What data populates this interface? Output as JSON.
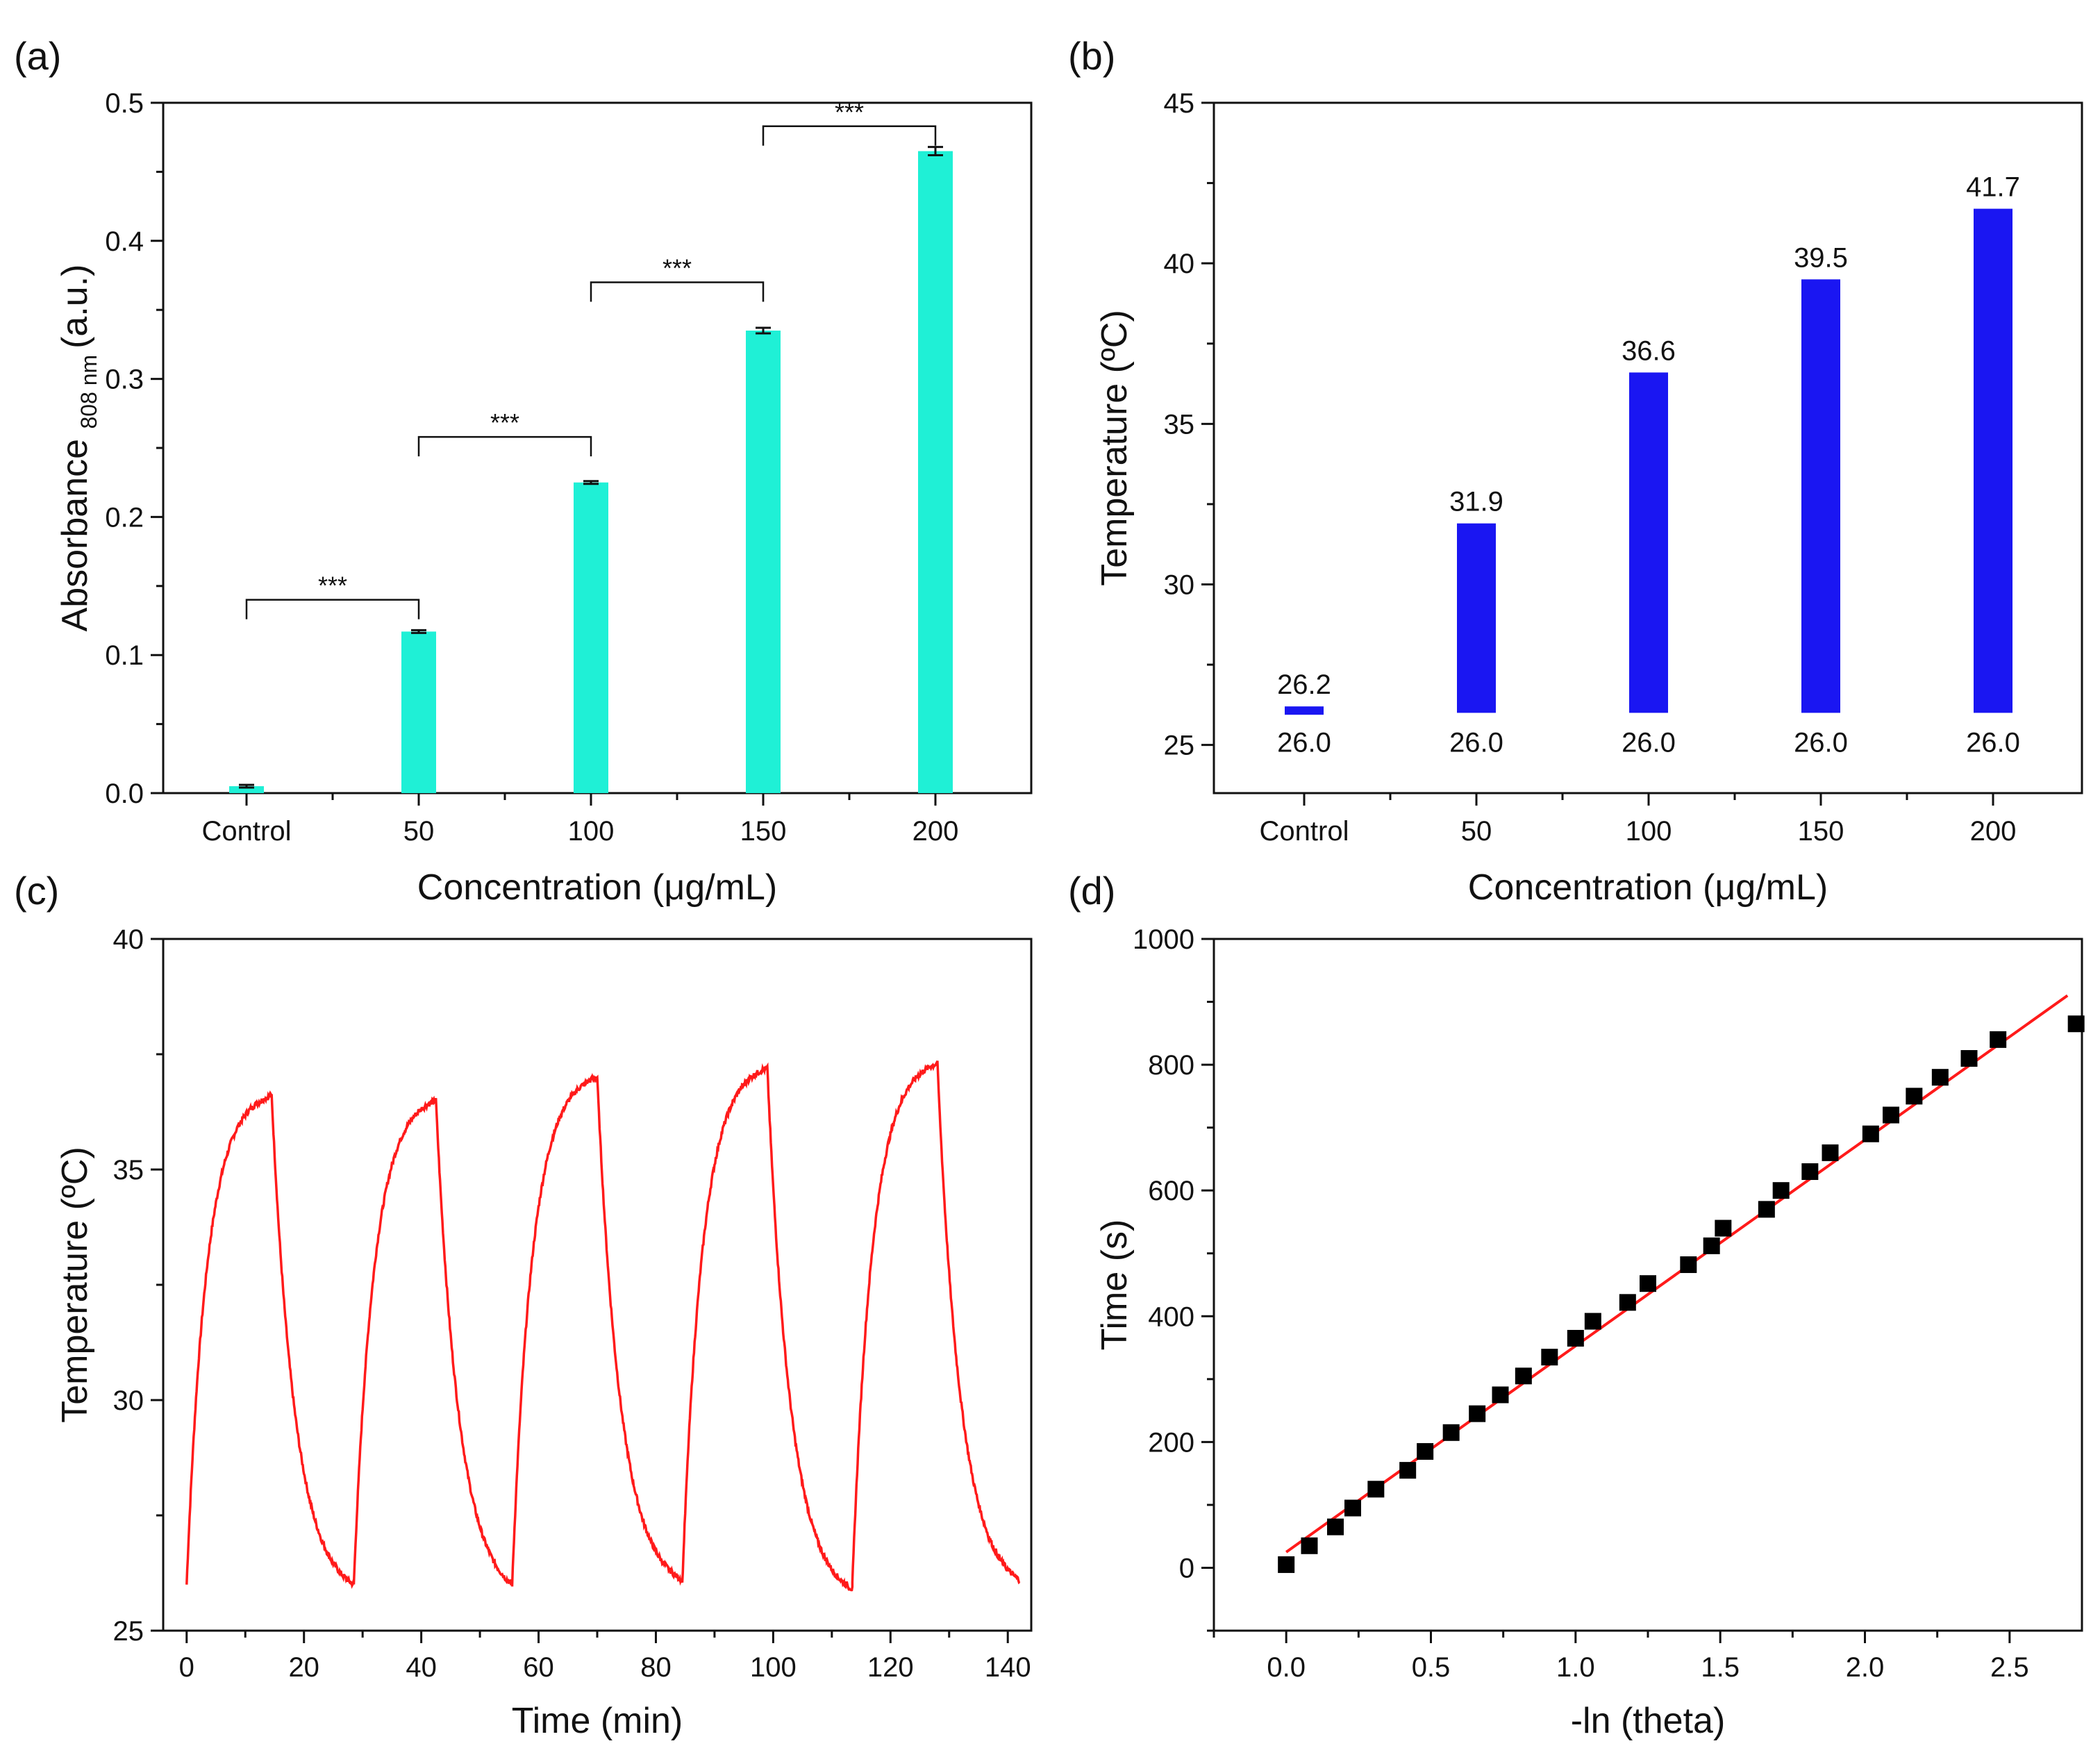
{
  "colors": {
    "bar_a": "#1ff0d6",
    "bar_b": "#1a16f2",
    "line_c": "#ff1a1a",
    "fit_d": "#ff1a1a",
    "marker_d": "#000000"
  },
  "panels": {
    "a": "(a)",
    "b": "(b)",
    "c": "(c)",
    "d": "(d)"
  },
  "chart_data": [
    {
      "panel": "a",
      "type": "bar",
      "categories": [
        "Control",
        "50",
        "100",
        "150",
        "200"
      ],
      "values": [
        0.005,
        0.117,
        0.225,
        0.335,
        0.465
      ],
      "errors": [
        0.001,
        0.001,
        0.001,
        0.002,
        0.003
      ],
      "ylim": [
        0.0,
        0.5
      ],
      "yticks": [
        "0.0",
        "0.1",
        "0.2",
        "0.3",
        "0.4",
        "0.5"
      ],
      "ylabel_main": "Absorbance",
      "ylabel_sub": "808 nm",
      "ylabel_unit": "(a.u.)",
      "xlabel": "Concentration (μg/mL)",
      "significance": [
        {
          "from": 0,
          "to": 1,
          "level": 0.14,
          "label": "***"
        },
        {
          "from": 1,
          "to": 2,
          "level": 0.258,
          "label": "***"
        },
        {
          "from": 2,
          "to": 3,
          "level": 0.37,
          "label": "***"
        },
        {
          "from": 3,
          "to": 4,
          "level": 0.483,
          "label": "***"
        }
      ]
    },
    {
      "panel": "b",
      "type": "bar",
      "categories": [
        "Control",
        "50",
        "100",
        "150",
        "200"
      ],
      "start": [
        26.0,
        26.0,
        26.0,
        26.0,
        26.0
      ],
      "end": [
        26.2,
        31.9,
        36.6,
        39.5,
        41.7
      ],
      "start_labels": [
        "26.0",
        "26.0",
        "26.0",
        "26.0",
        "26.0"
      ],
      "end_labels": [
        "26.2",
        "31.9",
        "36.6",
        "39.5",
        "41.7"
      ],
      "ylim": [
        23.5,
        45
      ],
      "yticks": [
        "25",
        "30",
        "35",
        "40",
        "45"
      ],
      "ylabel": "Temperature (ºC)",
      "xlabel": "Concentration (μg/mL)"
    },
    {
      "panel": "c",
      "type": "line",
      "description_series": "heating/cooling cycles",
      "cycles": [
        {
          "on": 0,
          "off": 14.5,
          "next": 28.5,
          "peak": 36.6,
          "low": 26.0
        },
        {
          "on": 28.5,
          "off": 42.5,
          "next": 55.5,
          "peak": 36.5,
          "low": 26.0
        },
        {
          "on": 55.5,
          "off": 70,
          "next": 84.5,
          "peak": 37.0,
          "low": 26.1
        },
        {
          "on": 84.5,
          "off": 99,
          "next": 113.5,
          "peak": 37.2,
          "low": 25.9
        },
        {
          "on": 113.5,
          "off": 128,
          "next": 142,
          "peak": 37.3,
          "low": 26.1
        }
      ],
      "xlim": [
        -4,
        144
      ],
      "ylim": [
        25,
        40
      ],
      "xticks": [
        "0",
        "20",
        "40",
        "60",
        "80",
        "100",
        "120",
        "140"
      ],
      "yticks": [
        "25",
        "30",
        "35",
        "40"
      ],
      "xlabel": "Time (min)",
      "ylabel": "Temperature (ºC)"
    },
    {
      "panel": "d",
      "type": "scatter",
      "x": [
        0.0,
        0.08,
        0.17,
        0.23,
        0.31,
        0.42,
        0.48,
        0.57,
        0.66,
        0.74,
        0.82,
        0.91,
        1.0,
        1.06,
        1.18,
        1.25,
        1.39,
        1.47,
        1.51,
        1.66,
        1.71,
        1.81,
        1.88,
        2.02,
        2.09,
        2.17,
        2.26,
        2.36,
        2.46,
        2.73
      ],
      "y": [
        5,
        35,
        65,
        95,
        125,
        155,
        185,
        215,
        245,
        275,
        305,
        335,
        365,
        392,
        422,
        452,
        482,
        512,
        540,
        570,
        600,
        630,
        660,
        690,
        720,
        750,
        780,
        810,
        840,
        865
      ],
      "fit": {
        "x0": 0.0,
        "y0": 25,
        "x1": 2.7,
        "y1": 910
      },
      "xlim": [
        -0.25,
        2.75
      ],
      "ylim": [
        -100,
        1000
      ],
      "xticks": [
        "0.0",
        "0.5",
        "1.0",
        "1.5",
        "2.0",
        "2.5"
      ],
      "yticks": [
        "0",
        "200",
        "400",
        "600",
        "800",
        "1000"
      ],
      "xlabel": "-ln (theta)",
      "ylabel": "Time (s)"
    }
  ]
}
